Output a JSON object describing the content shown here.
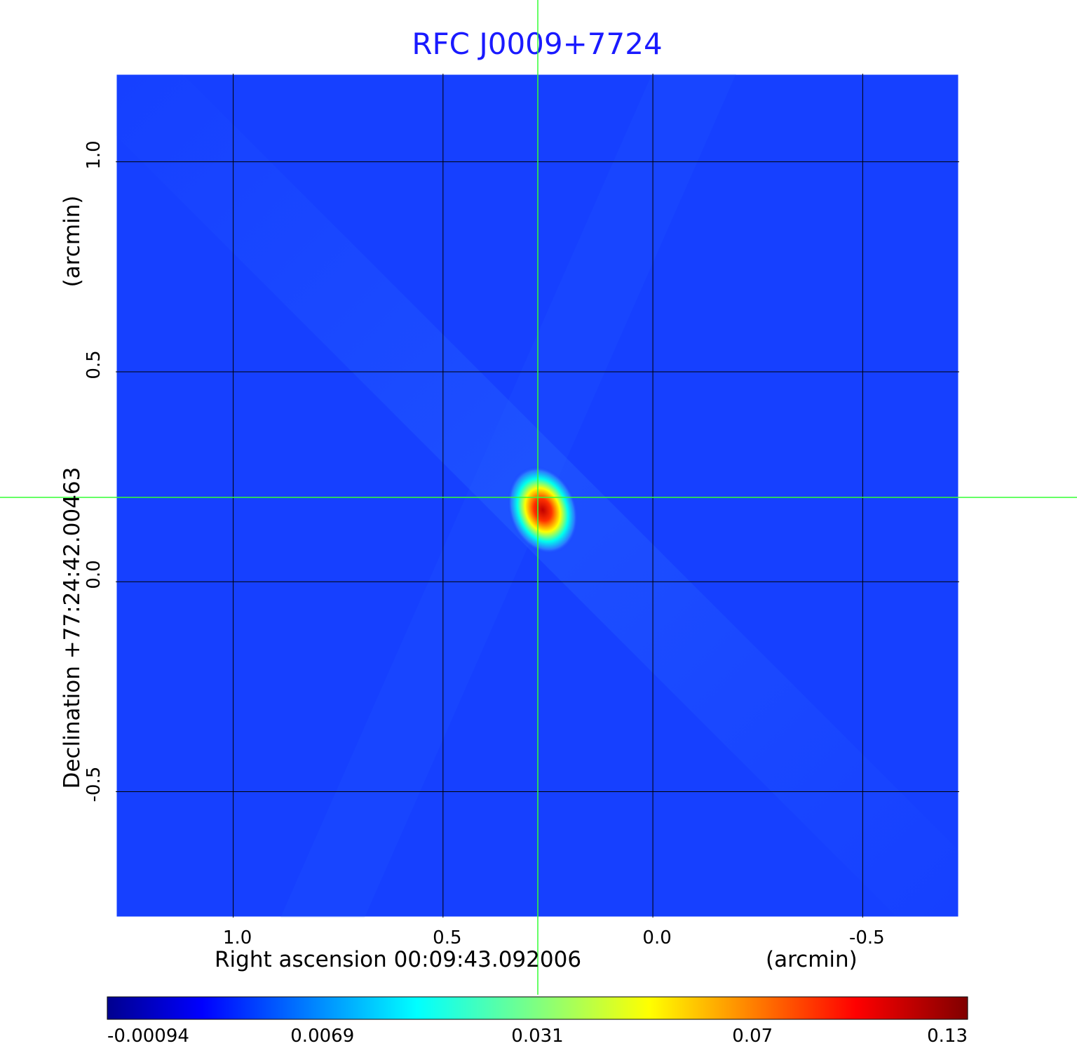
{
  "chart_data": {
    "type": "heatmap",
    "title": "RFC J0009+7724",
    "xlabel": "Right ascension  00:09:43.092006",
    "xunit": "(arcmin)",
    "ylabel": "Declination  +77:24:42.00463",
    "yunit": "(arcmin)",
    "x_ticks": [
      "1.0",
      "0.5",
      "0.0",
      "-0.5"
    ],
    "x_tick_values": [
      1.0,
      0.5,
      0.0,
      -0.5
    ],
    "y_ticks": [
      "1.0",
      "0.5",
      "0.0",
      "-0.5"
    ],
    "y_tick_values": [
      1.0,
      0.5,
      0.0,
      -0.5
    ],
    "xlim": [
      1.28,
      -0.73
    ],
    "ylim": [
      -0.8,
      1.21
    ],
    "grid": true,
    "colormap": "jet",
    "colorbar_ticks": [
      "-0.00094",
      "0.0069",
      "0.031",
      "0.07",
      "0.13"
    ],
    "colorbar_values": [
      -0.00094,
      0.0069,
      0.031,
      0.07,
      0.13
    ],
    "source_peak": {
      "x": 0.26,
      "y": 0.15,
      "value": 0.13
    },
    "crosshair": {
      "x": 0.27,
      "y": 0.2
    }
  },
  "colors": {
    "title": "#1a1aff",
    "background_map": "#1640ff",
    "grid": "#000000",
    "crosshair": "#33ff33"
  }
}
